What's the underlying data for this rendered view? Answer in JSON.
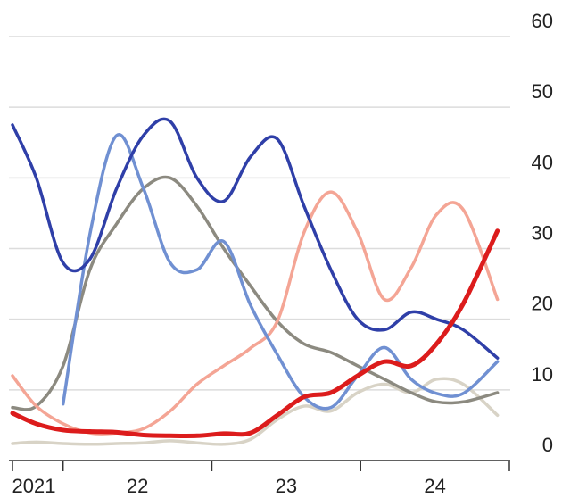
{
  "chart_data": {
    "type": "line",
    "x": [
      2021.66,
      2021.82,
      2022.0,
      2022.18,
      2022.36,
      2022.54,
      2022.72,
      2022.9,
      2023.08,
      2023.26,
      2023.44,
      2023.62,
      2023.8,
      2023.98,
      2024.16,
      2024.34,
      2024.51,
      2024.69,
      2024.92
    ],
    "xlim": [
      2021.66,
      2025.0
    ],
    "xticks": [
      {
        "value": 2021.5,
        "label": "2021"
      },
      {
        "value": 2022.5,
        "label": "22"
      },
      {
        "value": 2023.5,
        "label": "23"
      },
      {
        "value": 2024.5,
        "label": "24"
      }
    ],
    "ylim": [
      0,
      60
    ],
    "yticks": [
      0,
      10,
      20,
      30,
      40,
      50,
      60
    ],
    "grid": true,
    "series": [
      {
        "color": "#d8d3c6",
        "values": [
          2.4,
          2.6,
          2.4,
          2.3,
          2.4,
          2.5,
          2.8,
          2.5,
          2.3,
          3,
          5.8,
          7.7,
          7,
          9.6,
          10.8,
          9.6,
          11.5,
          10.8,
          6.4
        ]
      },
      {
        "color": "#8c8a80",
        "values": [
          7.5,
          7.7,
          13.4,
          27,
          33.5,
          38.5,
          40,
          36,
          30,
          24.7,
          19.7,
          16.5,
          15.3,
          13.4,
          11.5,
          9.6,
          8.3,
          8.3,
          9.6
        ]
      },
      {
        "color": "#f4a595",
        "values": [
          12,
          7.7,
          5.2,
          3.9,
          3.9,
          4.5,
          7,
          10.8,
          13.4,
          15.9,
          19.7,
          32.3,
          38,
          32.3,
          22.8,
          27.3,
          34.8,
          35.5,
          22.8
        ]
      },
      {
        "color": "#7090d2",
        "values": [
          null,
          null,
          8,
          32,
          46,
          38.5,
          28,
          27,
          31,
          22,
          15,
          9,
          7.5,
          12,
          16,
          11.5,
          9.5,
          9.5,
          14
        ]
      },
      {
        "color": "#2f3fa8",
        "values": [
          47.5,
          40,
          28,
          28.5,
          38.5,
          46,
          48,
          40,
          36.7,
          43,
          45.5,
          36,
          27,
          20,
          18.5,
          21,
          20,
          18.5,
          14.5
        ]
      },
      {
        "color": "#dc1c1c",
        "values": [
          6.7,
          5.2,
          4.3,
          4.1,
          4,
          3.6,
          3.5,
          3.5,
          3.8,
          3.9,
          6.4,
          9,
          9.6,
          12,
          14,
          13.4,
          16.5,
          22.2,
          32.5
        ]
      }
    ]
  }
}
